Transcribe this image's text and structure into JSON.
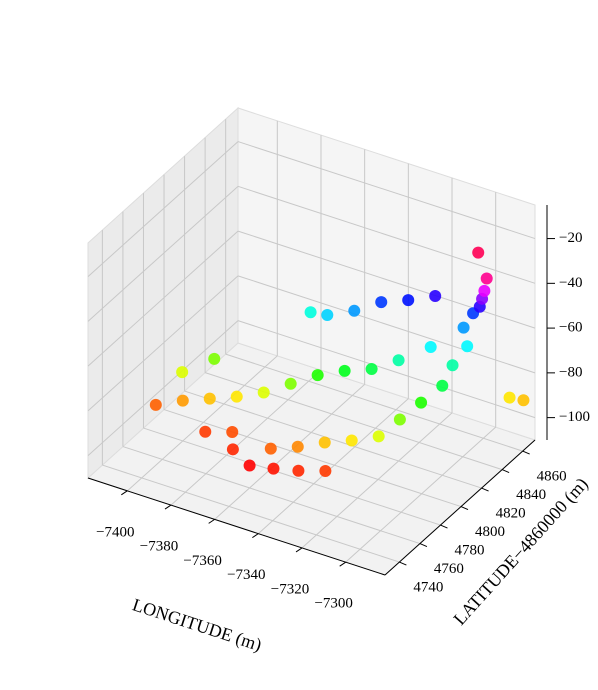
{
  "chart_data": {
    "type": "scatter3d",
    "xlabel": "LONGITUDE (m)",
    "ylabel": "LATITUDE−4860000 (m)",
    "xlim": [
      -7418,
      -7282
    ],
    "ylim": [
      4726,
      4872
    ],
    "zlim": [
      -110,
      -5
    ],
    "xticks": [
      {
        "value": -7400,
        "label": "−7400"
      },
      {
        "value": -7380,
        "label": "−7380"
      },
      {
        "value": -7360,
        "label": "−7360"
      },
      {
        "value": -7340,
        "label": "−7340"
      },
      {
        "value": -7320,
        "label": "−7320"
      },
      {
        "value": -7300,
        "label": "−7300"
      }
    ],
    "yticks": [
      4740,
      4760,
      4780,
      4800,
      4820,
      4840,
      4860
    ],
    "zticks": [
      {
        "value": -100,
        "label": "−100"
      },
      {
        "value": -80,
        "label": "−80"
      },
      {
        "value": -60,
        "label": "−60"
      },
      {
        "value": -40,
        "label": "−40"
      },
      {
        "value": -20,
        "label": "−20"
      }
    ],
    "colormap": "hsv",
    "grid": true,
    "x": [
      -7360,
      -7350,
      -7340,
      -7330,
      -7370,
      -7355,
      -7345,
      -7335,
      -7325,
      -7315,
      -7310,
      -7305,
      -7300,
      -7300,
      -7298,
      -7302,
      -7300,
      -7296,
      -7294,
      -7292,
      -7290,
      -7300,
      -7288,
      -7284,
      -7310,
      -7320,
      -7330,
      -7340,
      -7350,
      -7360,
      -7370,
      -7380,
      -7390,
      -7400,
      -7410,
      -7405,
      -7395,
      -7385,
      -7375,
      -7345,
      -7335,
      -7325,
      -7315,
      -7355,
      -7365
    ],
    "y": [
      4760,
      4762,
      4765,
      4770,
      4765,
      4770,
      4775,
      4780,
      4785,
      4790,
      4800,
      4810,
      4820,
      4830,
      4840,
      4845,
      4850,
      4848,
      4846,
      4844,
      4842,
      4855,
      4860,
      4865,
      4830,
      4820,
      4815,
      4810,
      4805,
      4800,
      4795,
      4790,
      4785,
      4780,
      4775,
      4790,
      4800,
      4770,
      4775,
      4830,
      4835,
      4840,
      4845,
      4825,
      4830
    ],
    "z": [
      -100,
      -99,
      -98,
      -97,
      -98,
      -95,
      -93,
      -90,
      -88,
      -85,
      -80,
      -75,
      -70,
      -65,
      -60,
      -55,
      -50,
      -45,
      -40,
      -35,
      -28,
      -25,
      -88,
      -90,
      -60,
      -65,
      -70,
      -72,
      -75,
      -80,
      -85,
      -88,
      -90,
      -92,
      -95,
      -85,
      -80,
      -97,
      -96,
      -55,
      -50,
      -48,
      -45,
      -58,
      -62
    ]
  }
}
